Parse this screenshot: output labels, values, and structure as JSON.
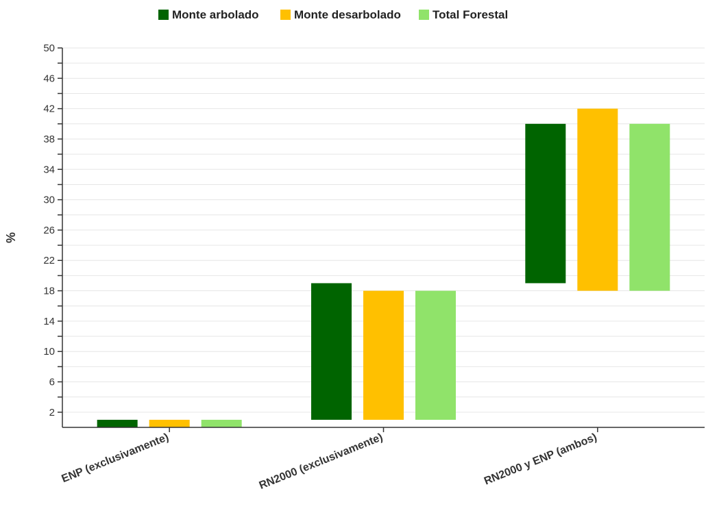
{
  "chart_data": {
    "type": "bar",
    "subtype": "floating-range",
    "categories": [
      "ENP (exclusivamente)",
      "RN2000 (exclusivamente)",
      "RN2000 y ENP (ambos)"
    ],
    "series": [
      {
        "name": "Monte arbolado",
        "color": "#006400",
        "ranges": [
          [
            0,
            1
          ],
          [
            1,
            19
          ],
          [
            19,
            40
          ]
        ]
      },
      {
        "name": "Monte desarbolado",
        "color": "#FFC000",
        "ranges": [
          [
            0,
            1
          ],
          [
            1,
            18
          ],
          [
            18,
            42
          ]
        ]
      },
      {
        "name": "Total Forestal",
        "color": "#90E36A",
        "ranges": [
          [
            0,
            1
          ],
          [
            1,
            18
          ],
          [
            18,
            40
          ]
        ]
      }
    ],
    "xlabel": "",
    "ylabel": "%",
    "ylim": [
      0,
      50
    ],
    "yticks": [
      2,
      6,
      10,
      14,
      18,
      22,
      26,
      30,
      34,
      38,
      42,
      46,
      50
    ],
    "grid": true,
    "legend_position": "top"
  }
}
